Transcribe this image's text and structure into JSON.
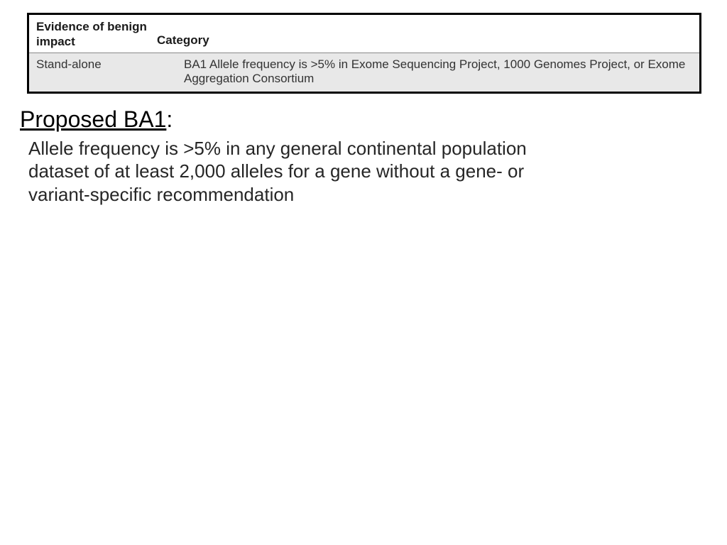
{
  "table": {
    "header": {
      "col1": "Evidence of benign impact",
      "col2": "Category"
    },
    "row": {
      "col1": "Stand-alone",
      "col2": "BA1 Allele frequency is >5% in Exome Sequencing Project, 1000 Genomes Project, or Exome Aggregation Consortium"
    }
  },
  "heading": {
    "underlined": "Proposed BA1",
    "colon": ":"
  },
  "body": "Allele frequency is >5% in any general continental population dataset of at least 2,000 alleles for a gene without a gene- or variant-specific recommendation"
}
